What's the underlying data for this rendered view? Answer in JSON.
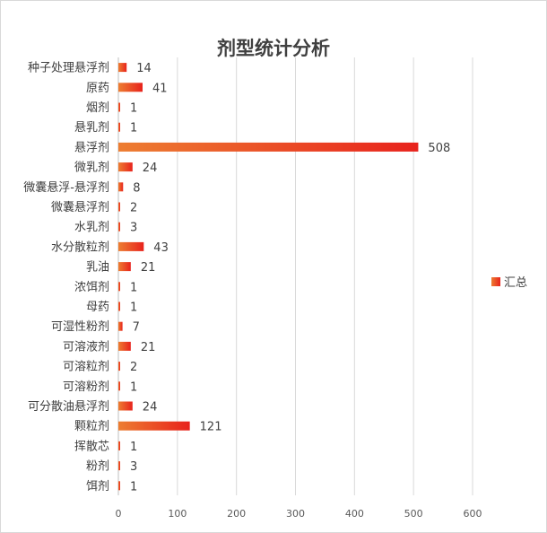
{
  "chart_data": {
    "type": "bar",
    "orientation": "horizontal",
    "title": "剂型统计分析",
    "categories": [
      "种子处理悬浮剂",
      "原药",
      "烟剂",
      "悬乳剂",
      "悬浮剂",
      "微乳剂",
      "微囊悬浮-悬浮剂",
      "微囊悬浮剂",
      "水乳剂",
      "水分散粒剂",
      "乳油",
      "浓饵剂",
      "母药",
      "可湿性粉剂",
      "可溶液剂",
      "可溶粒剂",
      "可溶粉剂",
      "可分散油悬浮剂",
      "颗粒剂",
      "挥散芯",
      "粉剂",
      "饵剂"
    ],
    "series": [
      {
        "name": "汇总",
        "values": [
          14,
          41,
          1,
          1,
          508,
          24,
          8,
          2,
          3,
          43,
          21,
          1,
          1,
          7,
          21,
          2,
          1,
          24,
          121,
          1,
          3,
          1
        ]
      }
    ],
    "xlim": [
      0,
      600
    ],
    "xticks": [
      0,
      100,
      200,
      300,
      400,
      500,
      600
    ],
    "grid": true,
    "legend": "right",
    "bar_colors": [
      "#ed7d31",
      "#e8221c"
    ]
  }
}
